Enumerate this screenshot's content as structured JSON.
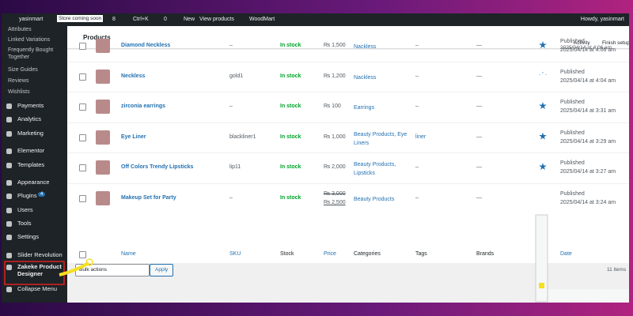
{
  "admin_bar": {
    "site": "yasinmart",
    "badge": "Store coming soon",
    "updates": "8",
    "search": "Ctrl+K",
    "comments": "0",
    "new": "New",
    "view": "View products",
    "theme": "WoodMart",
    "howdy": "Howdy, yasinmart"
  },
  "sidebar": {
    "items": [
      "Attributes",
      "Linked Variations",
      "Frequently Bought Together",
      "Size Guides",
      "Reviews",
      "Wishlists",
      "Payments",
      "Analytics",
      "Marketing",
      "Elementor",
      "Templates",
      "Appearance",
      "Plugins",
      "Users",
      "Tools",
      "Settings",
      "Slider Revolution",
      "Zakeke Product Designer",
      "Collapse Menu"
    ],
    "plugins_badge": "4"
  },
  "header": {
    "title": "Products",
    "activity": "Activity",
    "finish": "Finish setup"
  },
  "top_partial_date": "2025/04/14 at 4:06 am",
  "table": {
    "rows": [
      {
        "name": "Diamond Neckless",
        "sku": "–",
        "stock": "In stock",
        "price": "₨ 1,500",
        "categories": "Nackless",
        "tags": "–",
        "brands": "—",
        "featured": true,
        "status": "Published",
        "date": "2025/04/14 at 4:06 am"
      },
      {
        "name": "Neckless",
        "sku": "gold1",
        "stock": "In stock",
        "price": "₨ 1,200",
        "categories": "Nackless",
        "tags": "–",
        "brands": "—",
        "featured": false,
        "status": "Published",
        "date": "2025/04/14 at 4:04 am"
      },
      {
        "name": "zirconia earrings",
        "sku": "–",
        "stock": "In stock",
        "price": "₨ 100",
        "categories": "Earrings",
        "tags": "–",
        "brands": "—",
        "featured": true,
        "status": "Published",
        "date": "2025/04/14 at 3:31 am"
      },
      {
        "name": "Eye Liner",
        "sku": "blackliner1",
        "stock": "In stock",
        "price": "₨ 1,000",
        "categories": "Beauty Products, Eye Liners",
        "tags": "liner",
        "brands": "—",
        "featured": true,
        "status": "Published",
        "date": "2025/04/14 at 3:29 am"
      },
      {
        "name": "Off Colors Trendy Lipsticks",
        "sku": "lip11",
        "stock": "In stock",
        "price": "₨ 2,000",
        "categories": "Beauty Products, Lipsticks",
        "tags": "–",
        "brands": "—",
        "featured": true,
        "status": "Published",
        "date": "2025/04/14 at 3:27 am"
      },
      {
        "name": "Makeup Set for Party",
        "sku": "–",
        "stock": "In stock",
        "price_old": "₨ 3,000",
        "price": "₨ 2,500",
        "categories": "Beauty Products",
        "tags": "–",
        "brands": "—",
        "status": "Published",
        "date": "2025/04/14 at 3:24 am"
      }
    ],
    "columns": [
      "Name",
      "SKU",
      "Stock",
      "Price",
      "Categories",
      "Tags",
      "Brands",
      "Date"
    ]
  },
  "footer": {
    "bulk": "Bulk actions",
    "apply": "Apply",
    "count": "11 items"
  }
}
